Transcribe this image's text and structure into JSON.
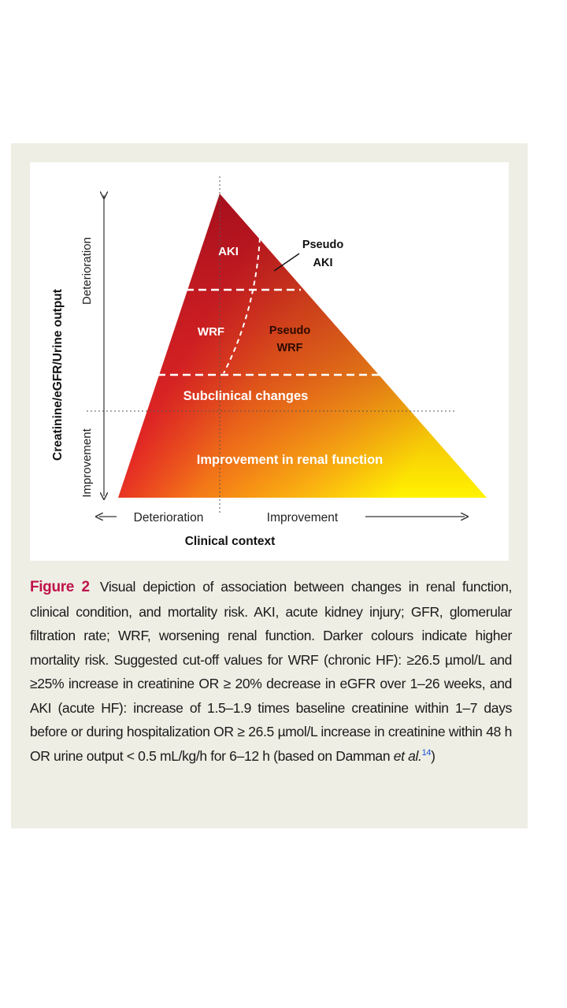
{
  "diagram": {
    "y_axis_label": "Creatinine/eGFR/Urine output",
    "y_top_label": "Deterioration",
    "y_bottom_label": "Improvement",
    "x_left_label": "Deterioration",
    "x_right_label": "Improvement",
    "x_axis_label": "Clinical context",
    "regions": {
      "aki": "AKI",
      "pseudo_aki_line1": "Pseudo",
      "pseudo_aki_line2": "AKI",
      "wrf": "WRF",
      "pseudo_wrf_line1": "Pseudo",
      "pseudo_wrf_line2": "WRF",
      "subclinical": "Subclinical  changes",
      "improvement": "Improvement in renal function"
    },
    "colors": {
      "dark_red": "#a3101f",
      "red": "#e0202a",
      "orange": "#f47a17",
      "yellow": "#fff200"
    }
  },
  "caption": {
    "label": "Figure 2",
    "text_before_ref": "Visual depiction of association between changes in renal function, clinical condition, and mortality risk. AKI, acute kidney injury; GFR, glomerular filtration rate; WRF, worsening renal function. Darker colours indicate higher mortality risk. Suggested cut-off values for WRF (chronic HF): ≥26.5 µmol/L and ≥25% increase in creatinine OR ≥ 20% decrease in eGFR over 1–26 weeks, and AKI (acute HF): increase of 1.5–1.9 times baseline creatinine within 1–7 days before or during hospitalization OR ≥ 26.5 µmol/L increase in creatinine within 48 h OR urine output < 0.5 mL/kg/h for 6–12 h (based on Damman ",
    "et_al": "et al.",
    "ref": "14",
    "text_after_ref": ")"
  }
}
